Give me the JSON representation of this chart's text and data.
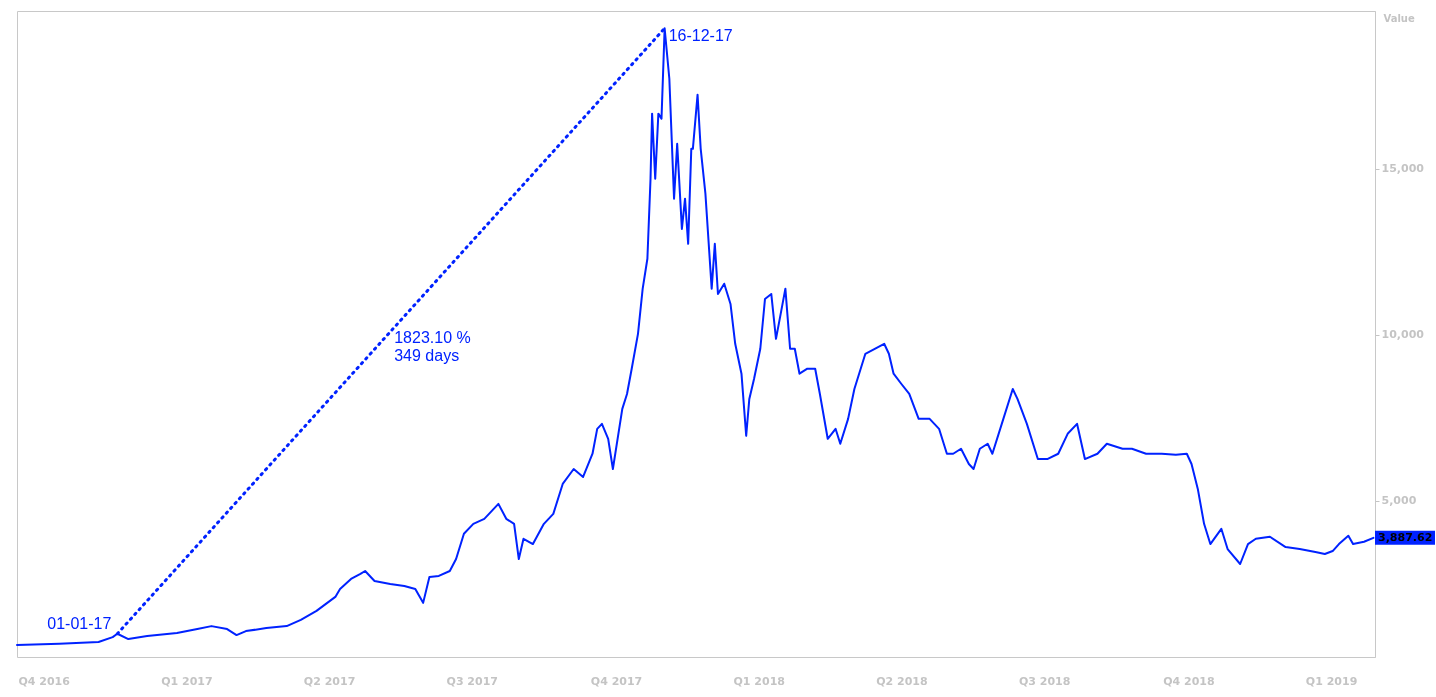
{
  "chart_data": {
    "type": "line",
    "ylabel": "Value",
    "xlim": [
      "2016-10-29",
      "2019-03-14"
    ],
    "xticks": [
      {
        "value": "2016-11-15",
        "label": "Q4 2016"
      },
      {
        "value": "2017-02-14",
        "label": "Q1 2017"
      },
      {
        "value": "2017-05-16",
        "label": "Q2 2017"
      },
      {
        "value": "2017-08-15",
        "label": "Q3 2017"
      },
      {
        "value": "2017-11-15",
        "label": "Q4 2017"
      },
      {
        "value": "2018-02-14",
        "label": "Q1 2018"
      },
      {
        "value": "2018-05-16",
        "label": "Q2 2018"
      },
      {
        "value": "2018-08-15",
        "label": "Q3 2018"
      },
      {
        "value": "2018-11-15",
        "label": "Q4 2018"
      },
      {
        "value": "2019-02-14",
        "label": "Q1 2019"
      }
    ],
    "ylim": [
      300,
      19750
    ],
    "yticks": [
      {
        "value": 5000,
        "label": "5,000"
      },
      {
        "value": 10000,
        "label": "10,000"
      },
      {
        "value": 15000,
        "label": "15,000"
      }
    ],
    "series": [
      {
        "color": "#0022ff",
        "line_style": "solid",
        "x": [
          "2016-10-29",
          "2016-11-25",
          "2016-12-20",
          "2016-12-29",
          "2017-01-01",
          "2017-01-08",
          "2017-01-20",
          "2017-02-08",
          "2017-02-21",
          "2017-03-02",
          "2017-03-12",
          "2017-03-18",
          "2017-03-24",
          "2017-04-06",
          "2017-04-19",
          "2017-04-28",
          "2017-05-08",
          "2017-05-14",
          "2017-05-20",
          "2017-05-23",
          "2017-05-30",
          "2017-06-05",
          "2017-06-08",
          "2017-06-14",
          "2017-06-24",
          "2017-07-03",
          "2017-07-10",
          "2017-07-15",
          "2017-07-19",
          "2017-07-25",
          "2017-08-01",
          "2017-08-05",
          "2017-08-10",
          "2017-08-16",
          "2017-08-23",
          "2017-08-29",
          "2017-09-01",
          "2017-09-06",
          "2017-09-11",
          "2017-09-14",
          "2017-09-17",
          "2017-09-23",
          "2017-09-30",
          "2017-10-06",
          "2017-10-12",
          "2017-10-19",
          "2017-10-25",
          "2017-10-31",
          "2017-11-03",
          "2017-11-06",
          "2017-11-10",
          "2017-11-13",
          "2017-11-16",
          "2017-11-19",
          "2017-11-22",
          "2017-11-25",
          "2017-11-29",
          "2017-12-02",
          "2017-12-05",
          "2017-12-07",
          "2017-12-08",
          "2017-12-10",
          "2017-12-12",
          "2017-12-14",
          "2017-12-16",
          "2017-12-19",
          "2017-12-22",
          "2017-12-24",
          "2017-12-27",
          "2017-12-29",
          "2017-12-31",
          "2018-01-02",
          "2018-01-03",
          "2018-01-06",
          "2018-01-08",
          "2018-01-11",
          "2018-01-15",
          "2018-01-17",
          "2018-01-19",
          "2018-01-23",
          "2018-01-27",
          "2018-01-30",
          "2018-02-03",
          "2018-02-06",
          "2018-02-08",
          "2018-02-11",
          "2018-02-15",
          "2018-02-18",
          "2018-02-22",
          "2018-02-25",
          "2018-02-28",
          "2018-03-03",
          "2018-03-06",
          "2018-03-09",
          "2018-03-12",
          "2018-03-17",
          "2018-03-22",
          "2018-03-25",
          "2018-03-30",
          "2018-04-04",
          "2018-04-07",
          "2018-04-12",
          "2018-04-16",
          "2018-04-23",
          "2018-04-29",
          "2018-05-05",
          "2018-05-08",
          "2018-05-11",
          "2018-05-16",
          "2018-05-21",
          "2018-05-27",
          "2018-06-03",
          "2018-06-09",
          "2018-06-14",
          "2018-06-18",
          "2018-06-23",
          "2018-06-28",
          "2018-07-01",
          "2018-07-05",
          "2018-07-10",
          "2018-07-13",
          "2018-07-20",
          "2018-07-26",
          "2018-07-29",
          "2018-08-04",
          "2018-08-11",
          "2018-08-17",
          "2018-08-24",
          "2018-08-30",
          "2018-09-05",
          "2018-09-10",
          "2018-09-18",
          "2018-09-24",
          "2018-10-04",
          "2018-10-10",
          "2018-10-19",
          "2018-10-29",
          "2018-11-07",
          "2018-11-14",
          "2018-11-17",
          "2018-11-21",
          "2018-11-25",
          "2018-11-29",
          "2018-12-06",
          "2018-12-10",
          "2018-12-18",
          "2018-12-23",
          "2018-12-28",
          "2019-01-06",
          "2019-01-16",
          "2019-01-25",
          "2019-02-04",
          "2019-02-10",
          "2019-02-15",
          "2019-02-19",
          "2019-02-25",
          "2019-02-28",
          "2019-03-07",
          "2019-03-13"
        ],
        "values": [
          660,
          700,
          750,
          900,
          1000,
          840,
          930,
          1020,
          1140,
          1230,
          1140,
          960,
          1080,
          1170,
          1230,
          1420,
          1690,
          1900,
          2110,
          2350,
          2650,
          2800,
          2890,
          2590,
          2500,
          2440,
          2350,
          1930,
          2710,
          2740,
          2890,
          3250,
          4010,
          4310,
          4460,
          4760,
          4910,
          4460,
          4310,
          3250,
          3860,
          3700,
          4310,
          4610,
          5510,
          5960,
          5720,
          6420,
          7170,
          7320,
          6870,
          5960,
          6870,
          7770,
          8220,
          8980,
          10030,
          11390,
          12290,
          14700,
          16660,
          14700,
          16660,
          16510,
          19230,
          17710,
          14100,
          15750,
          13190,
          14100,
          12740,
          15600,
          15600,
          17230,
          15600,
          14250,
          11390,
          12740,
          11230,
          11540,
          10930,
          9730,
          8830,
          6960,
          8070,
          8670,
          9580,
          11080,
          11230,
          9880,
          10630,
          11390,
          9580,
          9580,
          8830,
          8980,
          8980,
          8220,
          6870,
          7170,
          6720,
          7470,
          8370,
          9430,
          9580,
          9730,
          9430,
          8830,
          8520,
          8220,
          7470,
          7470,
          7170,
          6420,
          6420,
          6570,
          6110,
          5960,
          6570,
          6720,
          6420,
          7470,
          8370,
          8070,
          7320,
          6260,
          6260,
          6420,
          7020,
          7320,
          6260,
          6420,
          6720,
          6570,
          6570,
          6420,
          6420,
          6390,
          6420,
          6110,
          5360,
          4310,
          3700,
          4160,
          3550,
          3100,
          3700,
          3860,
          3920,
          3610,
          3550,
          3460,
          3400,
          3490,
          3700,
          3950,
          3700,
          3770,
          3887.62
        ]
      },
      {
        "color": "#0022ff",
        "line_style": "dotted",
        "x": [
          "2017-01-01",
          "2017-12-16"
        ],
        "values": [
          1000,
          19230
        ]
      }
    ],
    "annotations": [
      {
        "text": "01-01-17",
        "x": "2017-01-01",
        "y": 1000
      },
      {
        "text": "16-12-17",
        "x": "2017-12-16",
        "y": 19230
      },
      {
        "text": "1823.10 %\n349 days",
        "x": "2017-06-24",
        "y": 9900
      },
      {
        "text": "3,887.62",
        "x": "2019-03-13",
        "y": 3887.62
      }
    ]
  }
}
